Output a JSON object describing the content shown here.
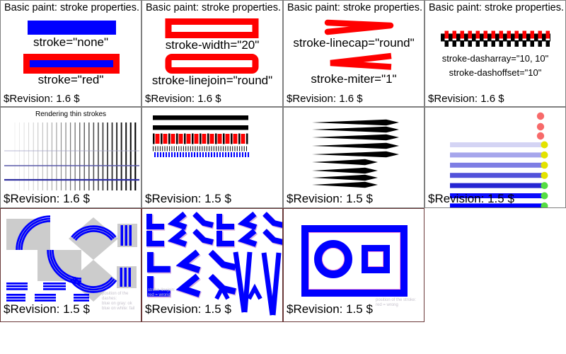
{
  "colors": {
    "stroke_red": "#ff0000",
    "stroke_blue": "#0000ff",
    "panel_gray": "#cccccc",
    "border_gray": "#808080",
    "border_maroon": "#6b3a3a",
    "dot_red": "#f76a6a",
    "dot_yellow": "#e3e300",
    "dot_green": "#55dd44",
    "pink_guide": "#ff7ad2",
    "fade_bars": [
      "#d4d4f4",
      "#a6a6ec",
      "#7e7ee4",
      "#5252da",
      "#2626d2",
      "#0b0bfb",
      "#0000ff"
    ]
  },
  "cells": {
    "r1c1": {
      "title": "Basic paint: stroke properties.",
      "label1": "stroke=\"none\"",
      "label2": "stroke=\"red\"",
      "revision": "$Revision: 1.6 $"
    },
    "r1c2": {
      "title": "Basic paint: stroke properties.",
      "label1": "stroke-width=\"20\"",
      "label2": "stroke-linejoin=\"round\"",
      "revision": "$Revision: 1.6 $"
    },
    "r1c3": {
      "title": "Basic paint: stroke properties.",
      "label1": "stroke-linecap=\"round\"",
      "label2": "stroke-miter=\"1\"",
      "revision": "$Revision: 1.6 $"
    },
    "r1c4": {
      "title": "Basic paint: stroke properties.",
      "label1": "stroke-dasharray=\"10, 10\"",
      "label2": "stroke-dashoffset=\"10\"",
      "revision": "$Revision: 1.6 $"
    },
    "r2c1": {
      "title": "Rendering thin strokes",
      "revision": "$Revision: 1.6 $"
    },
    "r2c2": {
      "revision": "$Revision: 1.5 $"
    },
    "r2c3": {
      "revision": "$Revision: 1.5 $"
    },
    "r2c4": {
      "revision": "$Revision: 1.5 $"
    },
    "r3c1": {
      "note1": "position of the dashes:",
      "note2": "blue on gray: ok",
      "note3": "blue on white: fail",
      "revision": "$Revision: 1.5 $"
    },
    "r3c2": {
      "note1": "stroke-linejoin:",
      "note2": "red = wrong",
      "revision": "$Revision: 1.5 $"
    },
    "r3c3": {
      "note1": "position of the stroke:",
      "note2": "red = wrong",
      "revision": "$Revision: 1.5 $"
    }
  }
}
